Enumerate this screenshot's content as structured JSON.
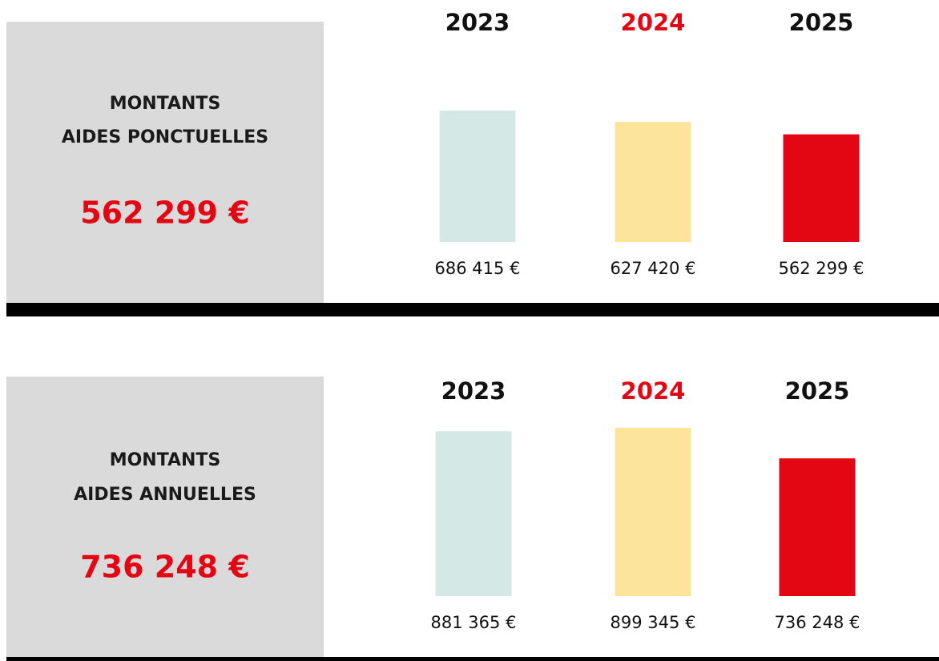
{
  "chart_data": [
    {
      "type": "bar",
      "title": [
        "MONTANTS",
        "AIDES PONCTUELLES"
      ],
      "highlight": "562 299 €",
      "categories": [
        "2023",
        "2024",
        "2025"
      ],
      "category_colors": [
        "#111111",
        "#e30613",
        "#111111"
      ],
      "values": [
        686415,
        627420,
        562299
      ],
      "value_labels": [
        "686 415 €",
        "627 420 €",
        "562 299 €"
      ],
      "colors": [
        "#d4e9e6",
        "#fce59a",
        "#e30613"
      ]
    },
    {
      "type": "bar",
      "title": [
        "MONTANTS",
        "AIDES ANNUELLES"
      ],
      "highlight": "736 248 €",
      "categories": [
        "2023",
        "2024",
        "2025"
      ],
      "category_colors": [
        "#111111",
        "#e30613",
        "#111111"
      ],
      "values": [
        881365,
        899345,
        736248
      ],
      "value_labels": [
        "881 365 €",
        "899 345 €",
        "736 248 €"
      ],
      "colors": [
        "#d4e9e6",
        "#fce59a",
        "#e30613"
      ]
    }
  ]
}
